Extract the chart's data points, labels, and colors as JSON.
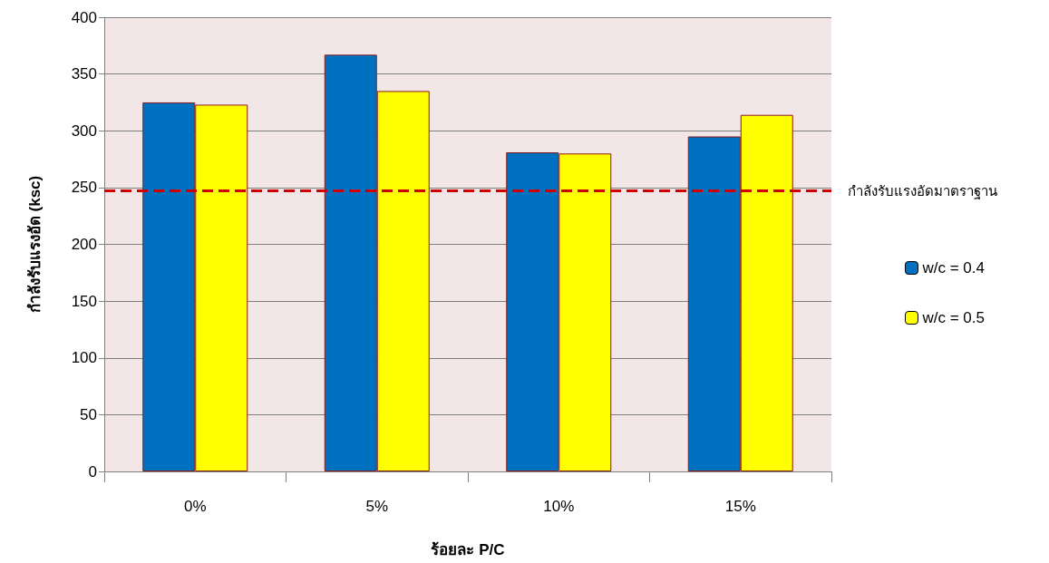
{
  "chart_data": {
    "type": "bar",
    "xlabel": "ร้อยละ P/C",
    "ylabel": "กำลังรับแรงอัด (ksc)",
    "categories": [
      "0%",
      "5%",
      "10%",
      "15%"
    ],
    "series": [
      {
        "name": "w/c = 0.4",
        "color": "#0070c0",
        "values": [
          325,
          367,
          281,
          295
        ]
      },
      {
        "name": "w/c = 0.5",
        "color": "#ffff00",
        "values": [
          323,
          335,
          280,
          314
        ]
      }
    ],
    "ylim": [
      0,
      400
    ],
    "yticks": [
      0,
      50,
      100,
      150,
      200,
      250,
      300,
      350,
      400
    ],
    "grid": "y",
    "legend": "right",
    "ref_lines": [
      {
        "axis": "y",
        "value": 247,
        "label": "กำลังรับแรงอัดมาตราฐาน",
        "color": "#cc0000",
        "line_style": "dashed"
      }
    ]
  }
}
